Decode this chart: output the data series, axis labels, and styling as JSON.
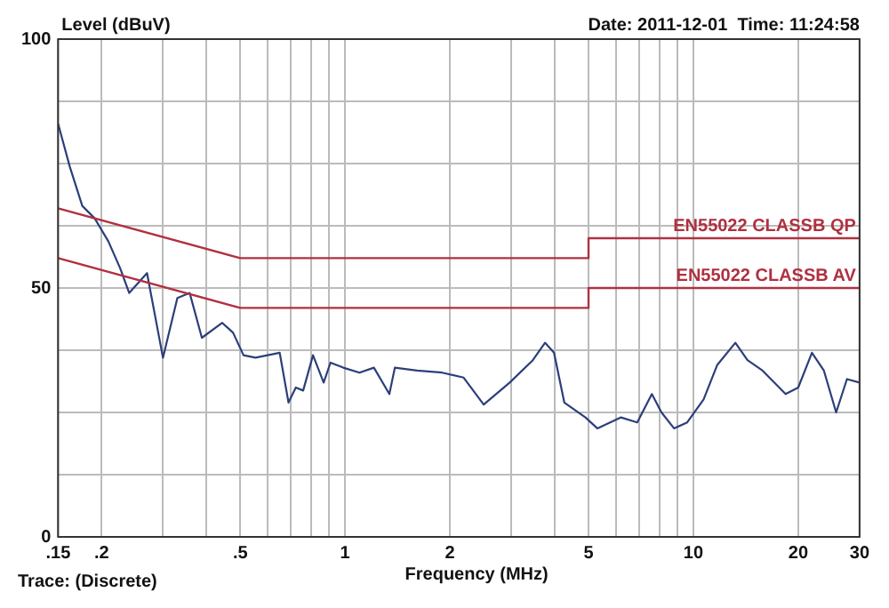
{
  "chart_data": {
    "type": "line",
    "xlabel": "Frequency (MHz)",
    "ylabel": "Level (dBuV)",
    "annotations": [
      "Date: 2011-12-01  Time: 11:24:58",
      "Trace: (Discrete)"
    ],
    "log": "x",
    "grid": true,
    "legend": false,
    "marker": "none",
    "line_style": "solid",
    "xlim": [
      0.15,
      30
    ],
    "xticks": [
      {
        "value": 0.15,
        "label": ".15"
      },
      {
        "value": 0.2,
        "label": ".2"
      },
      {
        "value": 0.3,
        "label": null
      },
      {
        "value": 0.4,
        "label": null
      },
      {
        "value": 0.5,
        "label": ".5"
      },
      {
        "value": 0.6,
        "label": null
      },
      {
        "value": 0.7,
        "label": null
      },
      {
        "value": 0.8,
        "label": null
      },
      {
        "value": 0.9,
        "label": null
      },
      1,
      2,
      {
        "value": 3,
        "label": null
      },
      {
        "value": 4,
        "label": null
      },
      5,
      {
        "value": 6,
        "label": null
      },
      {
        "value": 7,
        "label": null
      },
      {
        "value": 8,
        "label": null
      },
      {
        "value": 9,
        "label": null
      },
      10,
      20,
      30
    ],
    "ylim": [
      0,
      100
    ],
    "yticks": [
      0,
      {
        "value": 12.5,
        "label": null
      },
      {
        "value": 25,
        "label": null
      },
      {
        "value": 37.5,
        "label": null
      },
      50,
      {
        "value": 62.5,
        "label": null
      },
      {
        "value": 75,
        "label": null
      },
      {
        "value": 87.5,
        "label": null
      },
      100
    ],
    "series": [
      {
        "name": "EN55022 CLASSB QP",
        "color": "#b03040",
        "x": [
          0.15,
          0.5,
          5,
          5,
          30
        ],
        "values": [
          66,
          56,
          56,
          60,
          60
        ]
      },
      {
        "name": "EN55022 CLASSB AV",
        "color": "#b03040",
        "x": [
          0.15,
          0.5,
          5,
          5,
          30
        ],
        "values": [
          56,
          46,
          46,
          50,
          50
        ]
      },
      {
        "color": "#2b3f7a",
        "x": [
          0.15,
          0.162,
          0.176,
          0.191,
          0.209,
          0.226,
          0.24,
          0.27,
          0.3,
          0.33,
          0.358,
          0.388,
          0.444,
          0.477,
          0.511,
          0.553,
          0.649,
          0.688,
          0.722,
          0.758,
          0.809,
          0.868,
          0.908,
          0.988,
          1.1,
          1.21,
          1.34,
          1.39,
          1.61,
          1.9,
          2.19,
          2.5,
          2.97,
          3.46,
          3.75,
          3.98,
          4.26,
          4.9,
          5.3,
          6.2,
          6.9,
          7.6,
          8.1,
          8.8,
          9.6,
          10.7,
          11.7,
          13.2,
          14.3,
          15.8,
          18.4,
          20,
          21.9,
          23.7,
          25.7,
          27.6,
          30
        ],
        "values": [
          83,
          74.4,
          66.5,
          64,
          59.4,
          54,
          49,
          53,
          36,
          48,
          49,
          40,
          43,
          41,
          36.5,
          36,
          37,
          27,
          30,
          29.4,
          36.5,
          31,
          35,
          34,
          33,
          34,
          28.7,
          34,
          33.4,
          33,
          32,
          26.6,
          31,
          35.5,
          39,
          37,
          27,
          24,
          21.8,
          24,
          23,
          28.7,
          25,
          21.8,
          23,
          27.6,
          34.5,
          39,
          35.5,
          33.4,
          28.7,
          30,
          37,
          33.4,
          25,
          31.7,
          31
        ]
      }
    ]
  }
}
